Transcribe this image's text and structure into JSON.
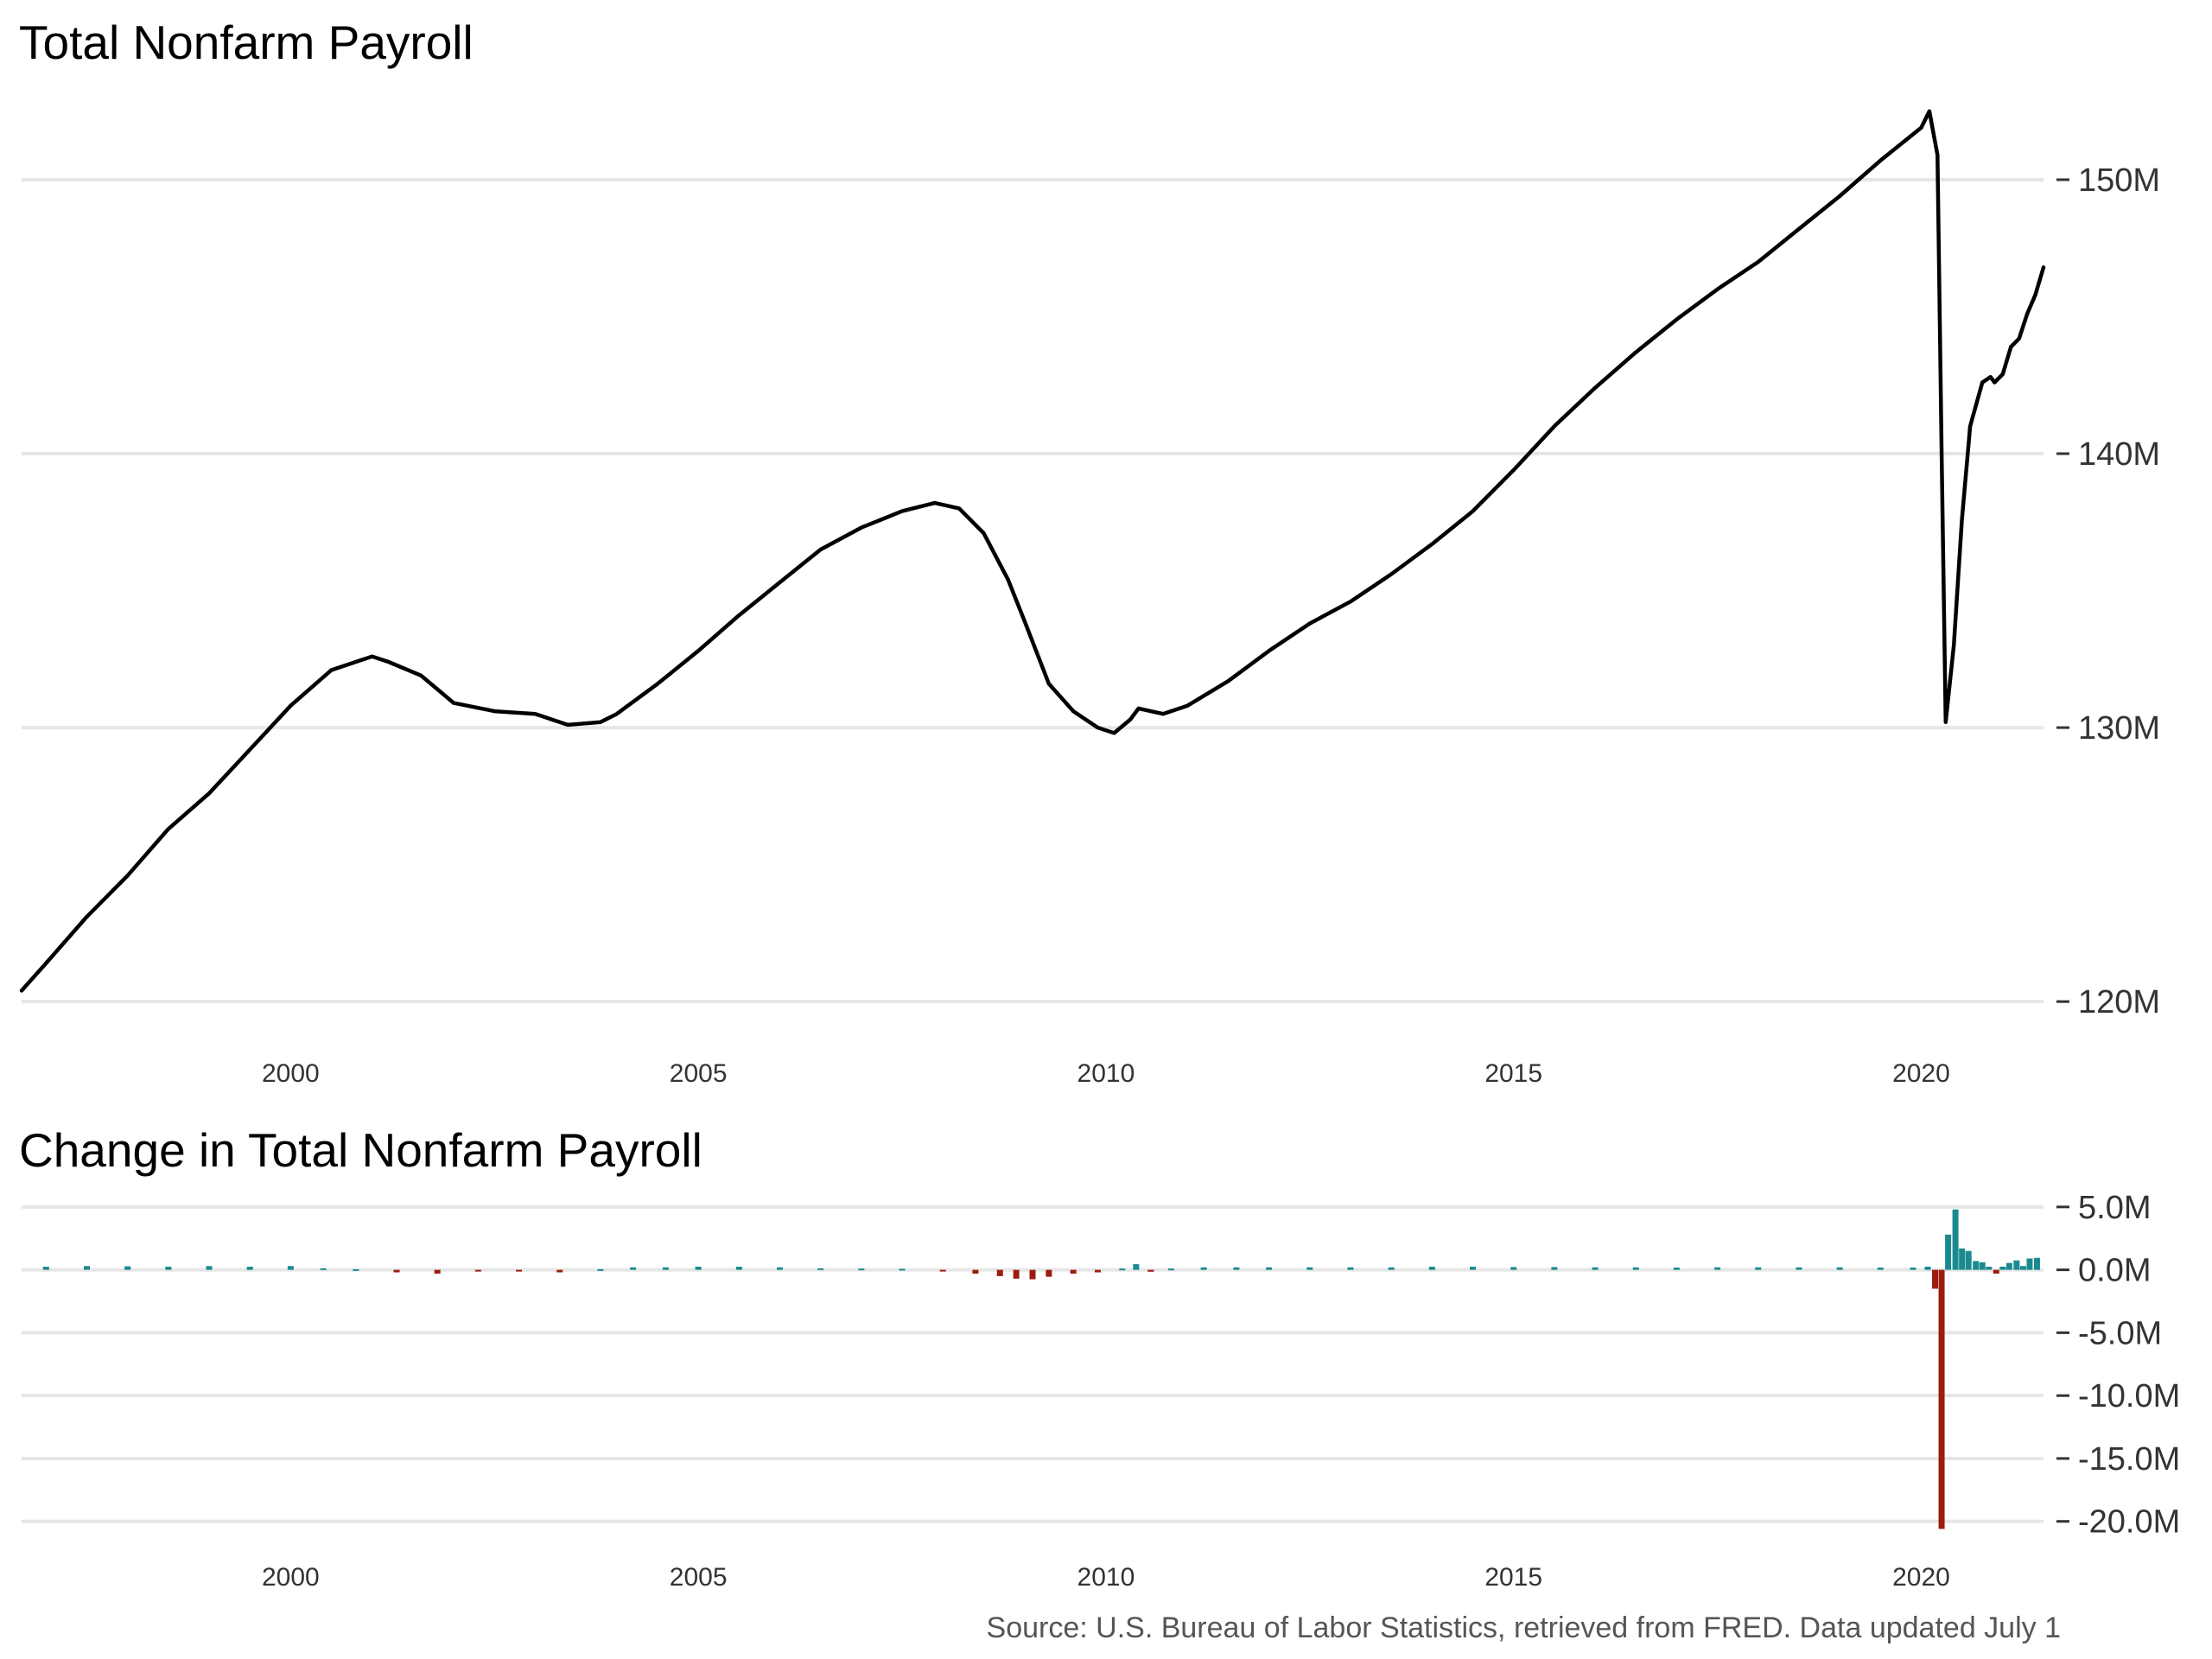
{
  "chart_data": [
    {
      "type": "line",
      "title": "Total Nonfarm Payroll",
      "xlabel": "",
      "ylabel": "",
      "xlim": [
        1996.7,
        2021.5
      ],
      "ylim": [
        119.5,
        153.5
      ],
      "y_unit": "millions of jobs",
      "y_axis_side": "right",
      "grid": "horizontal",
      "x_ticks": [
        2000,
        2005,
        2010,
        2015,
        2020
      ],
      "x_tick_labels": [
        "2000",
        "2005",
        "2010",
        "2015",
        "2020"
      ],
      "y_ticks": [
        120,
        130,
        140,
        150
      ],
      "y_tick_labels": [
        "120M",
        "130M",
        "140M",
        "150M"
      ],
      "line_color": "#000000",
      "series": [
        {
          "x": [
            1996.7,
            1997.0,
            1997.5,
            1998.0,
            1998.5,
            1999.0,
            1999.5,
            2000.0,
            2000.5,
            2001.0,
            2001.2,
            2001.6,
            2002.0,
            2002.5,
            2003.0,
            2003.4,
            2003.8,
            2004.0,
            2004.5,
            2005.0,
            2005.5,
            2006.0,
            2006.5,
            2007.0,
            2007.5,
            2007.9,
            2008.2,
            2008.5,
            2008.8,
            2009.0,
            2009.3,
            2009.6,
            2009.9,
            2010.1,
            2010.3,
            2010.4,
            2010.7,
            2011.0,
            2011.5,
            2012.0,
            2012.5,
            2013.0,
            2013.5,
            2014.0,
            2014.5,
            2015.0,
            2015.5,
            2016.0,
            2016.5,
            2017.0,
            2017.5,
            2018.0,
            2018.5,
            2019.0,
            2019.5,
            2020.0,
            2020.1,
            2020.2,
            2020.25,
            2020.3,
            2020.4,
            2020.5,
            2020.6,
            2020.75,
            2020.85,
            2020.9,
            2021.0,
            2021.1,
            2021.2,
            2021.3,
            2021.4,
            2021.5
          ],
          "y": [
            120.4,
            121.4,
            123.1,
            124.6,
            126.3,
            127.6,
            129.2,
            130.8,
            132.1,
            132.6,
            132.4,
            131.9,
            130.9,
            130.6,
            130.5,
            130.1,
            130.2,
            130.5,
            131.6,
            132.8,
            134.1,
            135.3,
            136.5,
            137.3,
            137.9,
            138.2,
            138.0,
            137.1,
            135.4,
            133.9,
            131.6,
            130.6,
            130.0,
            129.8,
            130.3,
            130.7,
            130.5,
            130.8,
            131.7,
            132.8,
            133.8,
            134.6,
            135.6,
            136.7,
            137.9,
            139.4,
            141.0,
            142.4,
            143.7,
            144.9,
            146.0,
            147.0,
            148.2,
            149.4,
            150.7,
            151.9,
            152.5,
            150.9,
            140.0,
            130.2,
            133.0,
            137.6,
            141.0,
            142.6,
            142.8,
            142.6,
            142.9,
            143.9,
            144.2,
            145.1,
            145.8,
            146.8
          ]
        }
      ]
    },
    {
      "type": "bar",
      "title": "Change in Total Nonfarm Payroll",
      "xlabel": "",
      "ylabel": "",
      "xlim": [
        1996.7,
        2021.5
      ],
      "ylim": [
        -20.5,
        6.5
      ],
      "y_unit": "millions of jobs",
      "y_axis_side": "right",
      "grid": "horizontal",
      "x_ticks": [
        2000,
        2005,
        2010,
        2015,
        2020
      ],
      "x_tick_labels": [
        "2000",
        "2005",
        "2010",
        "2015",
        "2020"
      ],
      "y_ticks": [
        5,
        0,
        -5,
        -10,
        -15,
        -20
      ],
      "y_tick_labels": [
        "5.0M",
        "0.0M",
        "-5.0M",
        "-10.0M",
        "-15.0M",
        "-20.0M"
      ],
      "positive_color": "#1b8a8f",
      "negative_color": "#9b1c0e",
      "series": [
        {
          "x": [
            1997.0,
            1997.5,
            1998.0,
            1998.5,
            1999.0,
            1999.5,
            2000.0,
            2000.4,
            2000.8,
            2001.3,
            2001.8,
            2002.3,
            2002.8,
            2003.3,
            2003.8,
            2004.2,
            2004.6,
            2005.0,
            2005.5,
            2006.0,
            2006.5,
            2007.0,
            2007.5,
            2008.0,
            2008.4,
            2008.7,
            2008.9,
            2009.1,
            2009.3,
            2009.6,
            2009.9,
            2010.2,
            2010.37,
            2010.55,
            2010.8,
            2011.2,
            2011.6,
            2012.0,
            2012.5,
            2013.0,
            2013.5,
            2014.0,
            2014.5,
            2015.0,
            2015.5,
            2016.0,
            2016.5,
            2017.0,
            2017.5,
            2018.0,
            2018.5,
            2019.0,
            2019.5,
            2019.9,
            2020.08,
            2020.17,
            2020.25,
            2020.33,
            2020.42,
            2020.5,
            2020.58,
            2020.67,
            2020.75,
            2020.83,
            2020.92,
            2021.0,
            2021.08,
            2021.17,
            2021.25,
            2021.33,
            2021.42
          ],
          "y": [
            0.25,
            0.3,
            0.28,
            0.25,
            0.3,
            0.25,
            0.3,
            0.12,
            0.05,
            -0.2,
            -0.3,
            -0.12,
            -0.12,
            -0.2,
            0.05,
            0.2,
            0.2,
            0.25,
            0.25,
            0.2,
            0.12,
            0.1,
            0.08,
            -0.08,
            -0.3,
            -0.5,
            -0.7,
            -0.75,
            -0.55,
            -0.3,
            -0.2,
            0.1,
            0.45,
            -0.15,
            0.1,
            0.2,
            0.2,
            0.2,
            0.2,
            0.2,
            0.2,
            0.25,
            0.25,
            0.22,
            0.22,
            0.2,
            0.2,
            0.18,
            0.2,
            0.2,
            0.2,
            0.2,
            0.18,
            0.18,
            0.25,
            -1.5,
            -20.6,
            2.8,
            4.8,
            1.7,
            1.5,
            0.7,
            0.6,
            0.25,
            -0.3,
            0.25,
            0.55,
            0.75,
            0.3,
            0.9,
            0.95
          ]
        }
      ]
    }
  ],
  "caption": "Source: U.S. Bureau of Labor Statistics, retrieved from FRED. Data updated July 1"
}
